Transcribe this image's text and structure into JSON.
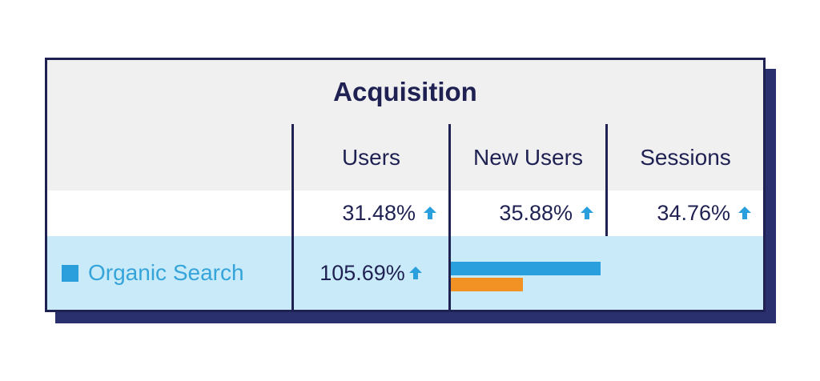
{
  "colors": {
    "navy": "#1f2152",
    "accent_blue": "#2a9fdd",
    "accent_orange": "#f39224",
    "highlight_row": "#c9eaf8",
    "header_bg": "#f0f0f1"
  },
  "table": {
    "title": "Acquisition",
    "columns": [
      "Users",
      "New Users",
      "Sessions"
    ],
    "totals": [
      {
        "value": "31.48%",
        "trend_icon": "arrow-up-icon"
      },
      {
        "value": "35.88%",
        "trend_icon": "arrow-up-icon"
      },
      {
        "value": "34.76%",
        "trend_icon": "arrow-up-icon"
      }
    ],
    "rows": [
      {
        "label": "Organic Search",
        "legend_icon": "square-legend-icon",
        "users": "105.69%",
        "trend_icon": "arrow-up-icon",
        "bars": [
          {
            "name": "blue",
            "fraction": 0.48
          },
          {
            "name": "orange",
            "fraction": 0.23
          }
        ]
      }
    ]
  }
}
